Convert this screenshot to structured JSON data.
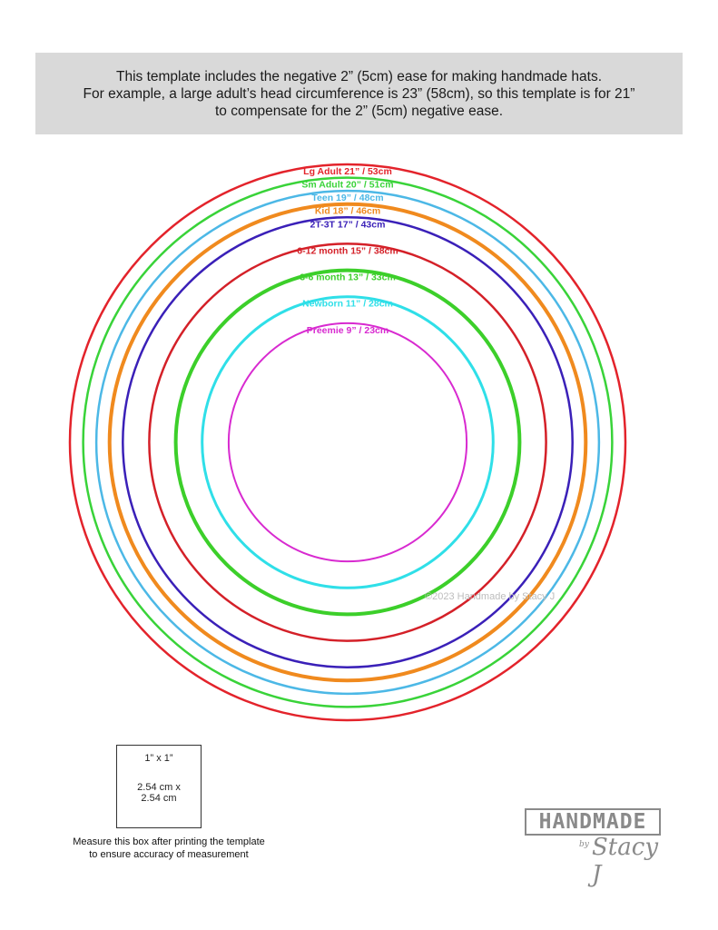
{
  "banner": {
    "line1": "This template includes the negative 2” (5cm) ease for making handmade hats.",
    "line2": "For example, a large adult’s head circumference is 23” (58cm), so this template is for 21”",
    "line3": "to compensate for the 2” (5cm) negative ease."
  },
  "rings": [
    {
      "label": "Lg Adult 21” / 53cm",
      "color": "#e3232b",
      "circumference_in": 21,
      "circumference_cm": 53
    },
    {
      "label": "Sm Adult 20” / 51cm",
      "color": "#39d339",
      "circumference_in": 20,
      "circumference_cm": 51
    },
    {
      "label": "Teen 19” / 48cm",
      "color": "#4cb8e6",
      "circumference_in": 19,
      "circumference_cm": 48
    },
    {
      "label": "Kid 18” / 46cm",
      "color": "#f08a1e",
      "circumference_in": 18,
      "circumference_cm": 46
    },
    {
      "label": "2T-3T 17” / 43cm",
      "color": "#3a20b8",
      "circumference_in": 17,
      "circumference_cm": 43
    },
    {
      "label": "6-12 month 15” / 38cm",
      "color": "#d42028",
      "circumference_in": 15,
      "circumference_cm": 38
    },
    {
      "label": "3-6 month 13” / 33cm",
      "color": "#3ccf2a",
      "circumference_in": 13,
      "circumference_cm": 33
    },
    {
      "label": "Newborn 11” / 28cm",
      "color": "#2fdfe8",
      "circumference_in": 11,
      "circumference_cm": 28
    },
    {
      "label": "Preemie 9” / 23cm",
      "color": "#d82ad0",
      "circumference_in": 9,
      "circumference_cm": 23
    }
  ],
  "watermark": "©2023 Handmade by Stacy J",
  "measure_box": {
    "inch": "1” x 1”",
    "cm_line1": "2.54 cm x",
    "cm_line2": "2.54 cm"
  },
  "measure_note": {
    "line1": "Measure this box after printing the template",
    "line2": "to ensure accuracy of measurement"
  },
  "logo": {
    "word": "HANDMADE",
    "by": "by",
    "script": "Stacy J"
  }
}
